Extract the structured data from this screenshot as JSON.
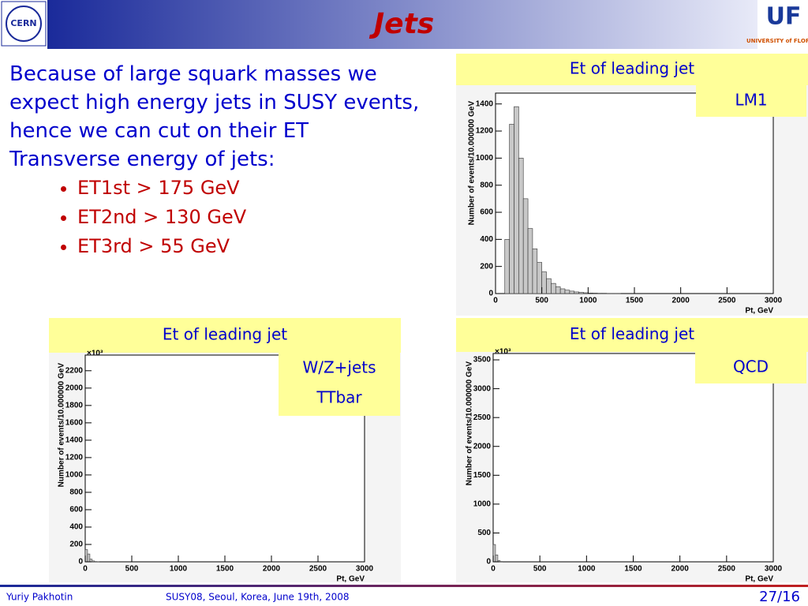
{
  "header": {
    "title": "Jets"
  },
  "logos": {
    "left": "CERN",
    "right": "UF",
    "right_sub": "UNIVERSITY of FLORIDA"
  },
  "body": {
    "paragraph": [
      "Because of large squark masses we expect high energy jets in SUSY events, hence we can cut on their ET",
      "Transverse energy of jets:"
    ],
    "bullets": [
      "ET1st > 175 GeV",
      "ET2nd > 130 GeV",
      "ET3rd > 55 GeV"
    ]
  },
  "footer": {
    "author": "Yuriy Pakhotin",
    "event": "SUSY08, Seoul, Korea, June 19th, 2008",
    "page": "27/16"
  },
  "chart_data": [
    {
      "type": "histogram",
      "title": "Et of leading jet",
      "legend": [
        "LM1"
      ],
      "xlabel": "Pt, GeV",
      "ylabel": "Number of events/10.000000 GeV",
      "bins": [
        0,
        50,
        100,
        150,
        200,
        250,
        300,
        350,
        400,
        450,
        500,
        550,
        600,
        650,
        700,
        750,
        800,
        850,
        900,
        950,
        1000,
        1050,
        1100,
        1150,
        1200,
        1250,
        1300,
        1350,
        1400,
        1450,
        1500
      ],
      "values": [
        0,
        0,
        400,
        1250,
        1380,
        1000,
        700,
        480,
        330,
        230,
        160,
        110,
        75,
        50,
        35,
        25,
        18,
        12,
        9,
        6,
        4,
        3,
        2,
        2,
        1,
        1,
        1,
        0,
        0,
        0
      ],
      "xlim": [
        0,
        3000
      ],
      "xticks": [
        0,
        500,
        1000,
        1500,
        2000,
        2500,
        3000
      ],
      "ylim": [
        0,
        1480
      ],
      "yticks": [
        0,
        200,
        400,
        600,
        800,
        1000,
        1200,
        1400
      ],
      "color": "#c8c8c8"
    },
    {
      "type": "histogram",
      "title": "Et of leading jet",
      "legend": [
        "W/Z+jets",
        "TTbar"
      ],
      "xlabel": "Pt, GeV",
      "ylabel": "Number of events/10.000000 GeV",
      "multiplier": "×10³",
      "bins": [
        0,
        25,
        50,
        75,
        100,
        125,
        150
      ],
      "values": [
        140,
        90,
        30,
        10,
        3,
        1
      ],
      "xlim": [
        0,
        3000
      ],
      "xticks": [
        0,
        500,
        1000,
        1500,
        2000,
        2500,
        3000
      ],
      "ylim": [
        0,
        2380
      ],
      "yticks": [
        0,
        200,
        400,
        600,
        800,
        1000,
        1200,
        1400,
        1600,
        1800,
        2000,
        2200
      ],
      "color": "#c8c8c8"
    },
    {
      "type": "histogram",
      "title": "Et of leading jet",
      "legend": [
        "QCD"
      ],
      "xlabel": "Pt, GeV",
      "ylabel": "Number of events/10.000000 GeV",
      "multiplier": "×10³",
      "bins": [
        0,
        25,
        50,
        75,
        100
      ],
      "values": [
        300,
        120,
        20,
        5
      ],
      "xlim": [
        0,
        3000
      ],
      "xticks": [
        0,
        500,
        1000,
        1500,
        2000,
        2500,
        3000
      ],
      "ylim": [
        0,
        3610
      ],
      "yticks": [
        0,
        500,
        1000,
        1500,
        2000,
        2500,
        3000,
        3500
      ],
      "color": "#c8c8c8"
    }
  ]
}
